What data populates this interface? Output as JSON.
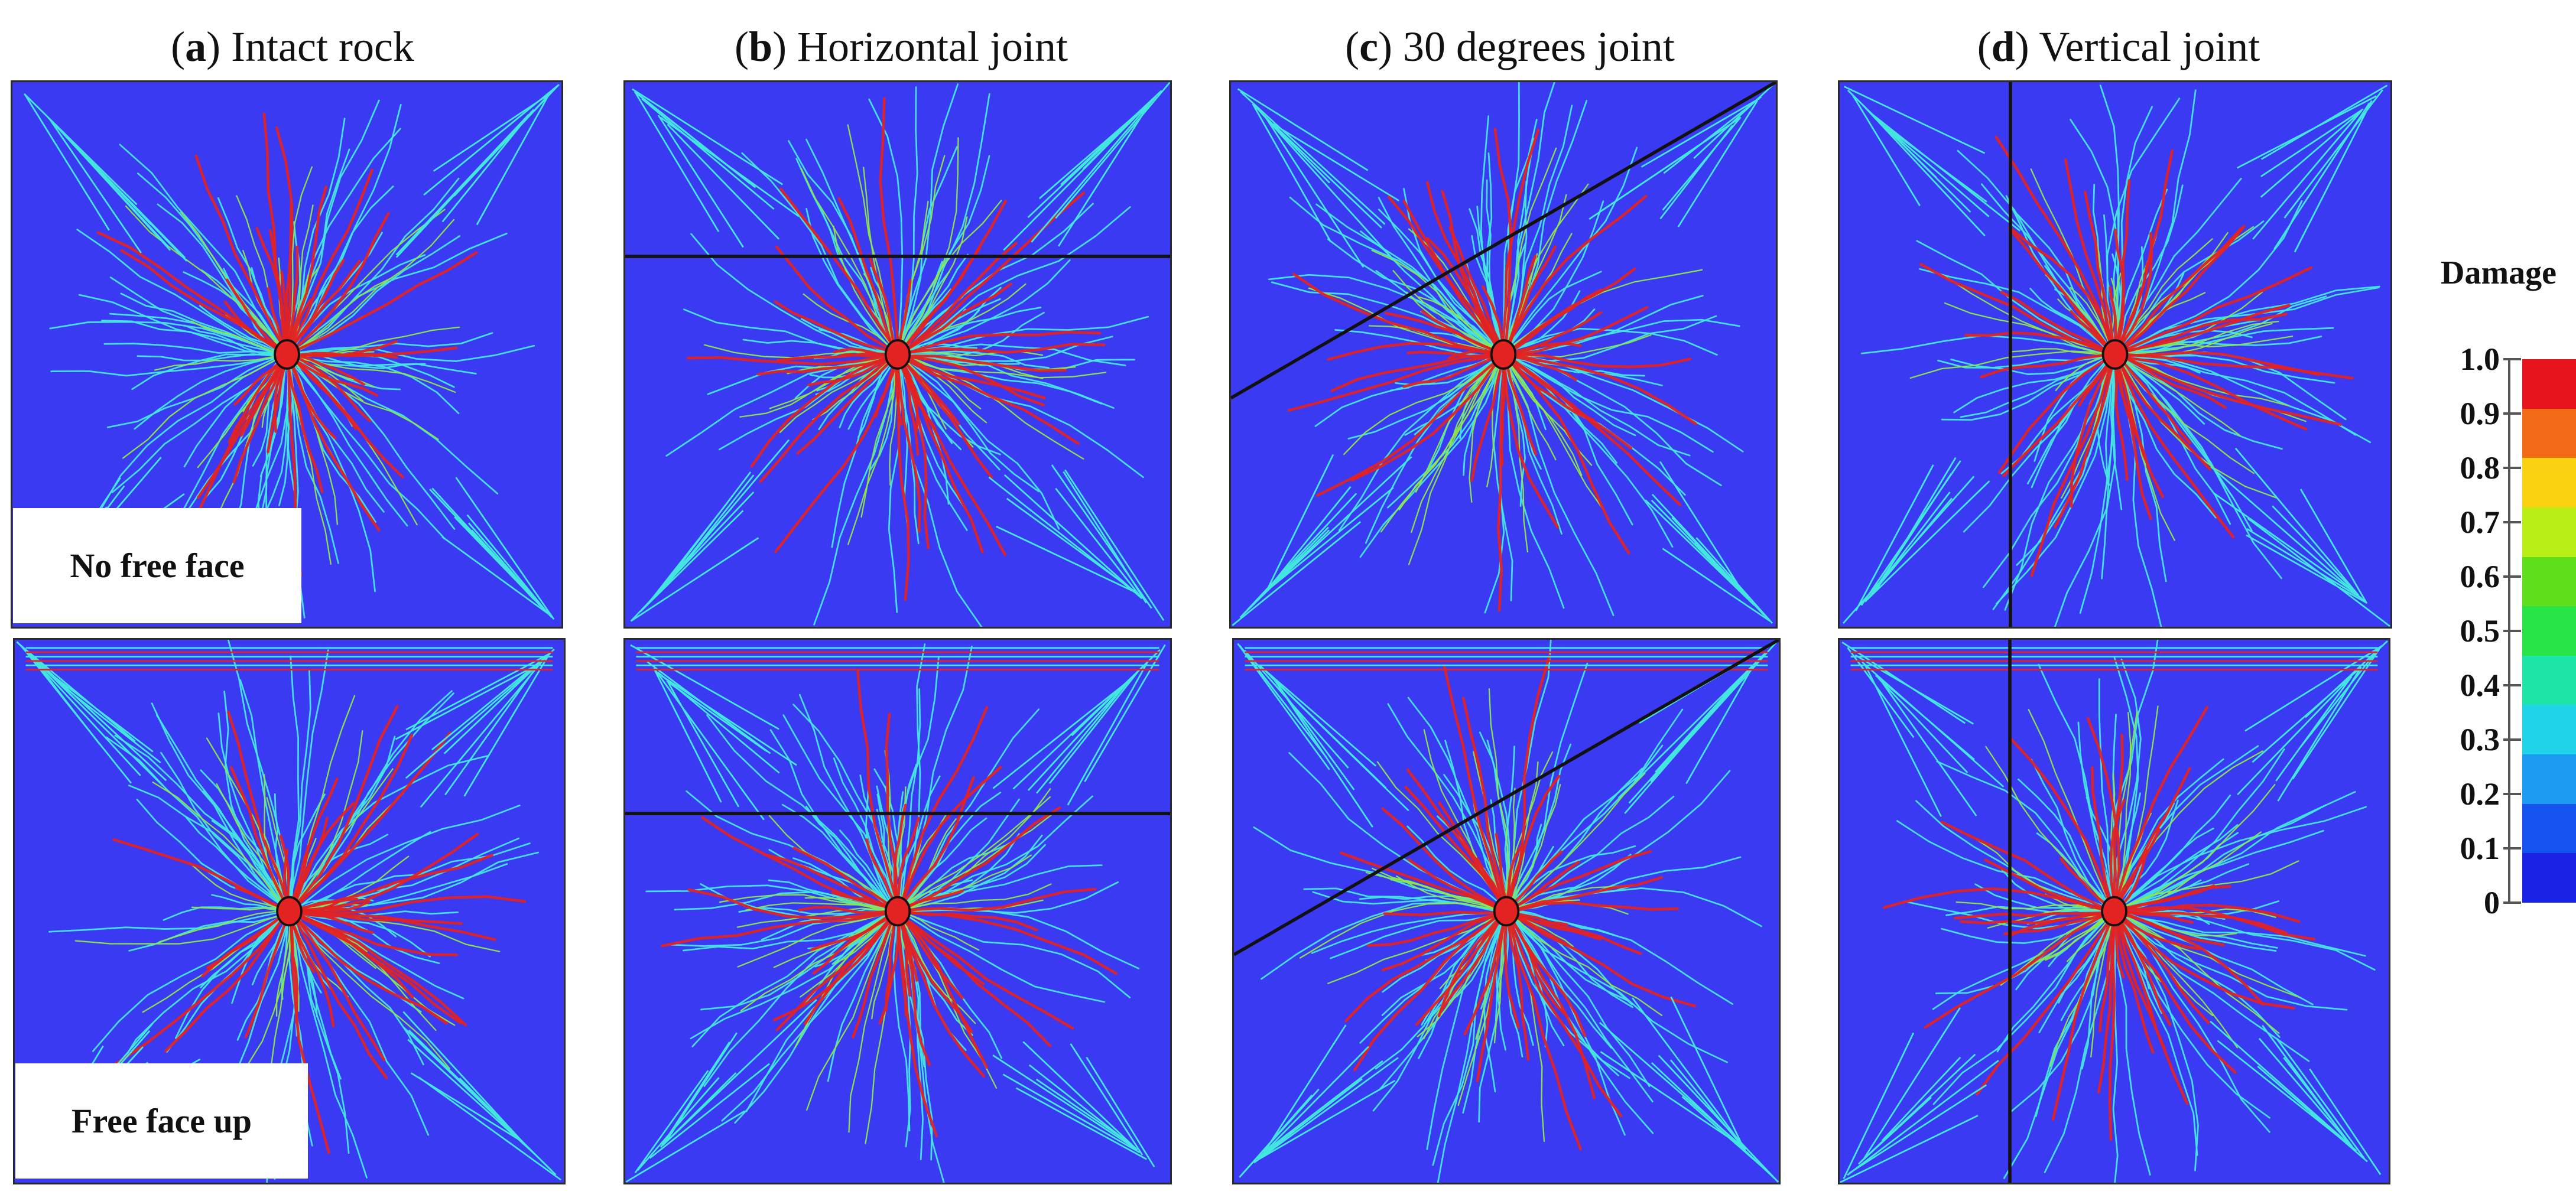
{
  "columns": [
    {
      "letter": "a",
      "title": "Intact rock"
    },
    {
      "letter": "b",
      "title": "Horizontal joint"
    },
    {
      "letter": "c",
      "title": "30 degrees joint"
    },
    {
      "letter": "d",
      "title": "Vertical joint"
    }
  ],
  "row_labels": {
    "top": "No free face",
    "bottom": "Free face up"
  },
  "legend": {
    "title": "Damage",
    "ticks": [
      "1.0",
      "0.9",
      "0.8",
      "0.7",
      "0.6",
      "0.5",
      "0.4",
      "0.3",
      "0.2",
      "0.1",
      "0"
    ],
    "colors": [
      "#e8141c",
      "#f26a16",
      "#fbd20f",
      "#b9ee17",
      "#5fe01a",
      "#28e447",
      "#1ee6a8",
      "#1fd4e6",
      "#1b9cf0",
      "#1552f0",
      "#1a22e6"
    ]
  },
  "colors": {
    "background_blue": "#3a3af2",
    "crack_red": "#e32222",
    "crack_cyan": "#43e6e0",
    "crack_green": "#8de84a",
    "joint_line": "#111111"
  }
}
